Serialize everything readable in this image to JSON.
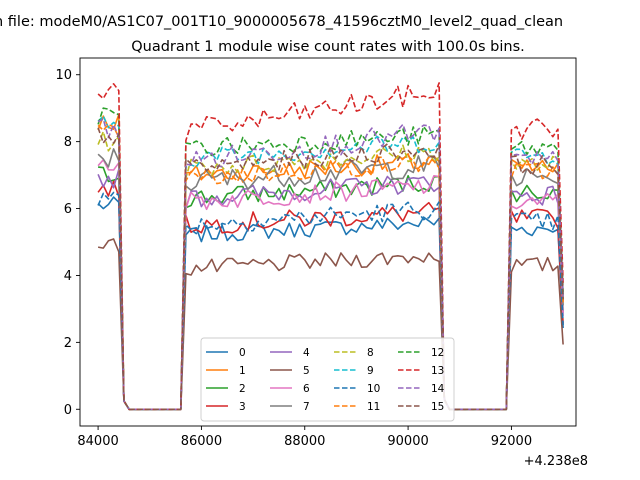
{
  "chart_data": {
    "type": "line",
    "suptitle": "n file: modeM0/AS1C07_001T10_9000005678_41596cztM0_level2_quad_clean",
    "title": "Quadrant 1 module wise count rates with 100.0s bins.",
    "xlabel": "",
    "ylabel": "",
    "x_offset_label": "+4.238e8",
    "xlim": [
      83650,
      93250
    ],
    "ylim": [
      -0.5,
      10.5
    ],
    "x_ticks": [
      84000,
      86000,
      88000,
      90000,
      92000
    ],
    "x_tick_labels": [
      "84000",
      "86000",
      "88000",
      "90000",
      "92000"
    ],
    "y_ticks": [
      0,
      2,
      4,
      6,
      8,
      10
    ],
    "y_tick_labels": [
      "0",
      "2",
      "4",
      "6",
      "8",
      "10"
    ],
    "grid": false,
    "legend_position": "lower center",
    "legend_columns": 4,
    "segments": [
      {
        "start": 84000,
        "end": 84400,
        "drop_end": 84500
      },
      {
        "rise_start": 85600,
        "start": 85700,
        "end": 90600,
        "drop_end": 90700
      },
      {
        "rise_start": 91900,
        "start": 92000,
        "end": 92900,
        "drop_end": 93000
      }
    ],
    "gap_value": 0,
    "series": [
      {
        "name": "0",
        "style": "solid",
        "color": "#1f77b4",
        "levels": [
          6.1,
          5.2,
          5.6,
          5.4
        ],
        "noise": 0.25
      },
      {
        "name": "1",
        "style": "solid",
        "color": "#ff7f0e",
        "levels": [
          8.6,
          7.0,
          7.4,
          7.2
        ],
        "noise": 0.3
      },
      {
        "name": "2",
        "style": "solid",
        "color": "#2ca02c",
        "levels": [
          7.0,
          6.3,
          6.8,
          6.5
        ],
        "noise": 0.3
      },
      {
        "name": "3",
        "style": "solid",
        "color": "#d62728",
        "levels": [
          6.6,
          5.5,
          5.9,
          5.7
        ],
        "noise": 0.3
      },
      {
        "name": "4",
        "style": "solid",
        "color": "#9467bd",
        "levels": [
          6.9,
          6.3,
          6.8,
          6.4
        ],
        "noise": 0.3
      },
      {
        "name": "5",
        "style": "solid",
        "color": "#8c564b",
        "levels": [
          4.9,
          4.2,
          4.6,
          4.3
        ],
        "noise": 0.25
      },
      {
        "name": "6",
        "style": "solid",
        "color": "#e377c2",
        "levels": [
          7.4,
          6.2,
          6.7,
          6.2
        ],
        "noise": 0.3
      },
      {
        "name": "7",
        "style": "solid",
        "color": "#7f7f7f",
        "levels": [
          7.5,
          6.8,
          7.3,
          6.9
        ],
        "noise": 0.35
      },
      {
        "name": "8",
        "style": "dashed",
        "color": "#bcbd22",
        "levels": [
          8.0,
          7.2,
          7.7,
          7.3
        ],
        "noise": 0.3
      },
      {
        "name": "9",
        "style": "dashed",
        "color": "#17becf",
        "levels": [
          8.5,
          7.5,
          8.0,
          7.6
        ],
        "noise": 0.3
      },
      {
        "name": "10",
        "style": "dashed",
        "color": "#1f77b4",
        "levels": [
          6.3,
          5.5,
          6.0,
          5.6
        ],
        "noise": 0.3
      },
      {
        "name": "11",
        "style": "dashed",
        "color": "#ff7f0e",
        "levels": [
          8.3,
          6.9,
          7.4,
          7.1
        ],
        "noise": 0.3
      },
      {
        "name": "12",
        "style": "dashed",
        "color": "#2ca02c",
        "levels": [
          8.8,
          7.8,
          8.2,
          7.8
        ],
        "noise": 0.3
      },
      {
        "name": "13",
        "style": "dashed",
        "color": "#d62728",
        "levels": [
          9.6,
          8.3,
          9.5,
          8.4
        ],
        "noise": 0.35
      },
      {
        "name": "14",
        "style": "dashed",
        "color": "#9467bd",
        "levels": [
          8.4,
          7.4,
          8.3,
          7.4
        ],
        "noise": 0.35
      },
      {
        "name": "15",
        "style": "dashed",
        "color": "#8c564b",
        "levels": [
          8.2,
          7.2,
          7.8,
          7.3
        ],
        "noise": 0.3
      }
    ]
  }
}
